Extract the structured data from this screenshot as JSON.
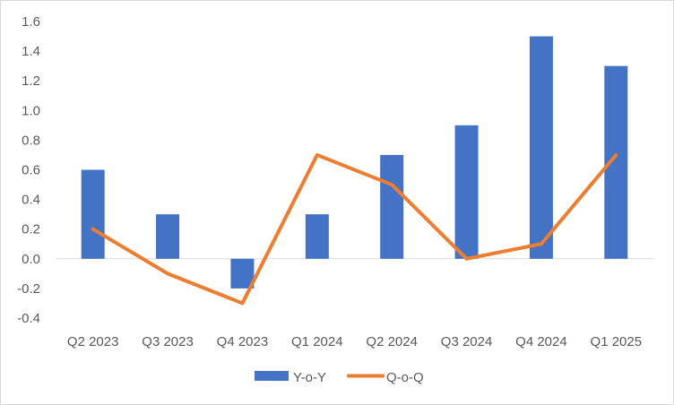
{
  "chart_data": {
    "type": "bar",
    "title": "",
    "xlabel": "",
    "ylabel": "",
    "categories": [
      "Q2 2023",
      "Q3 2023",
      "Q4 2023",
      "Q1 2024",
      "Q2 2024",
      "Q3 2024",
      "Q4 2024",
      "Q1 2025"
    ],
    "series": [
      {
        "name": "Y-o-Y",
        "type": "bar",
        "color": "#4472c4",
        "values": [
          0.6,
          0.3,
          -0.2,
          0.3,
          0.7,
          0.9,
          1.5,
          1.3
        ]
      },
      {
        "name": "Q-o-Q",
        "type": "line",
        "color": "#ed7d31",
        "values": [
          0.2,
          -0.1,
          -0.3,
          0.7,
          0.5,
          0.0,
          0.1,
          0.7
        ]
      }
    ],
    "ylim": [
      -0.4,
      1.6
    ],
    "yticks": [
      "-0.4",
      "-0.2",
      "0.0",
      "0.2",
      "0.4",
      "0.6",
      "0.8",
      "1.0",
      "1.2",
      "1.4",
      "1.6"
    ],
    "grid": false,
    "legend_position": "bottom"
  }
}
